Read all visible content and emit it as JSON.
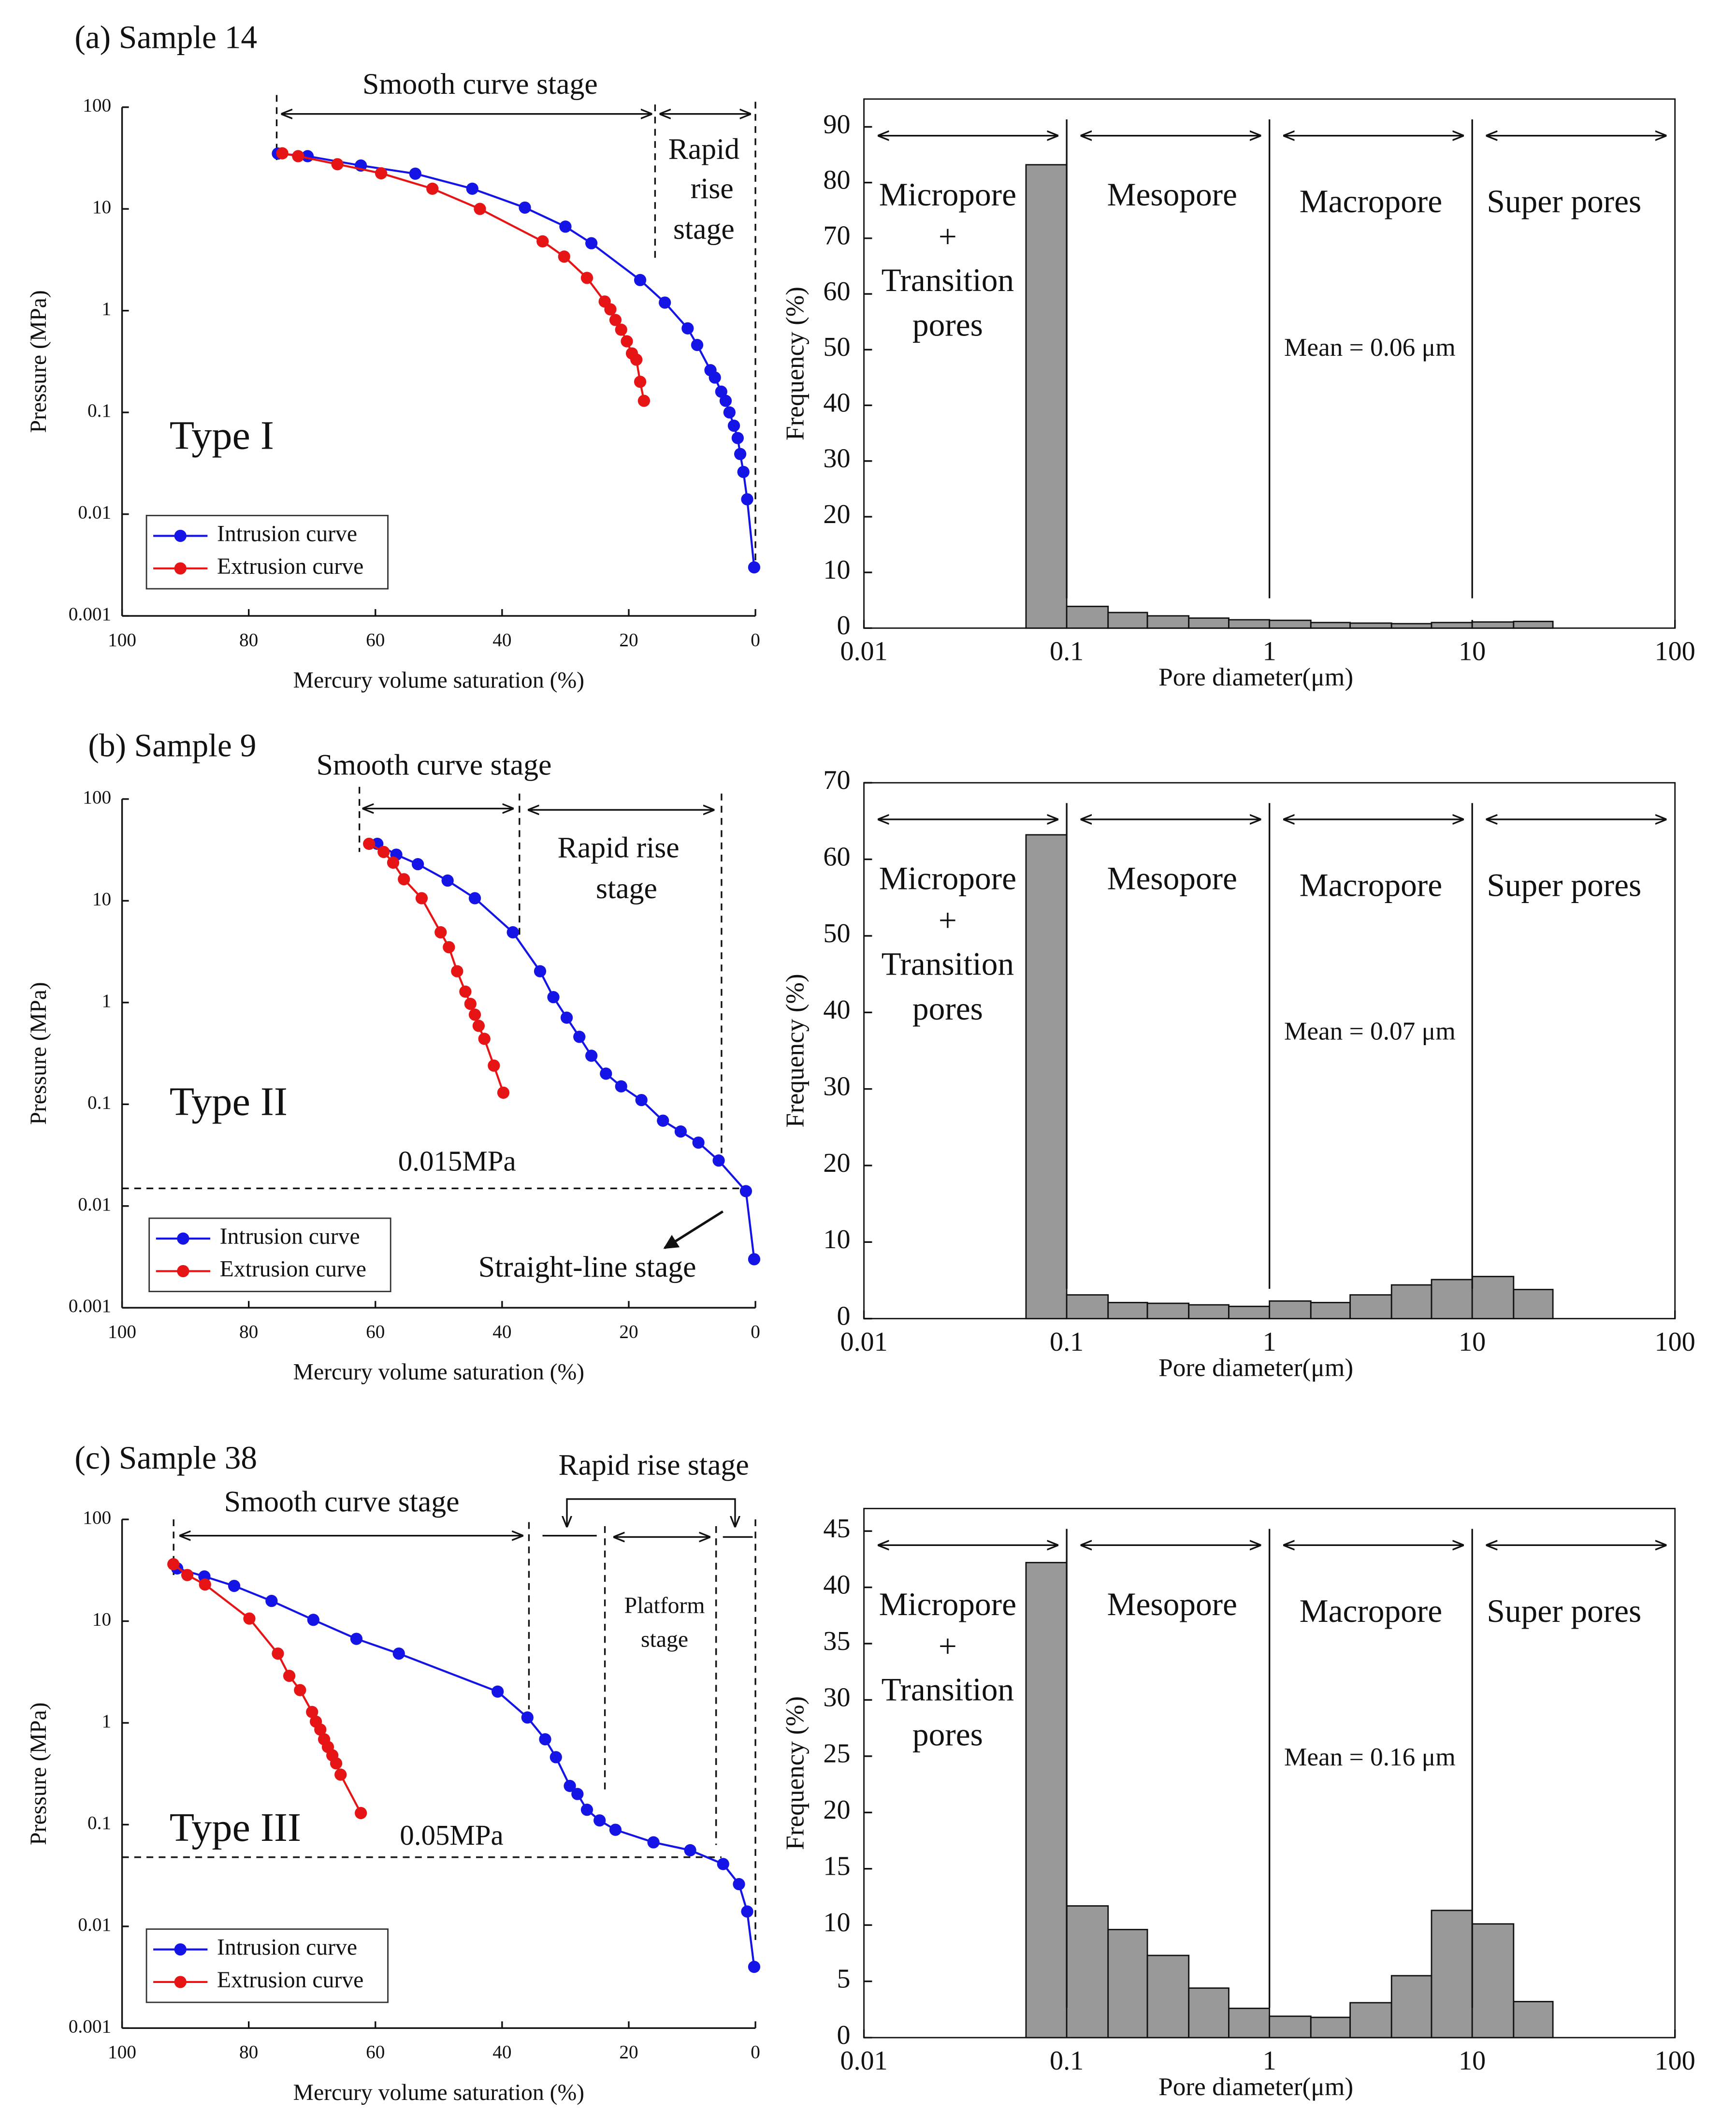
{
  "chart_data": [
    {
      "type": "line",
      "title": "(a)  Sample 14",
      "xlabel": "Mercury volume saturation (%)",
      "ylabel": "Pressure (MPa)",
      "xlim": [
        100,
        0
      ],
      "xticks": [
        100,
        80,
        60,
        40,
        20,
        0
      ],
      "ylim": [
        0.001,
        100
      ],
      "yticks": [
        100,
        10,
        1,
        0.1,
        0.01,
        0.001
      ],
      "log_y": true,
      "legend": "lower left",
      "type_label": "Type I",
      "annotations": [
        "Smooth curve stage",
        "Rapid",
        "rise",
        "stage"
      ],
      "series": [
        {
          "name": "Intrusion curve",
          "color": "#1414e6",
          "x": [
            75.4,
            70.7,
            62.3,
            53.7,
            44.7,
            36.4,
            30,
            25.9,
            18.2,
            14.3,
            10.7,
            9.2,
            7.1,
            6.4,
            5.4,
            4.7,
            4.1,
            3.4,
            2.8,
            2.4,
            1.9,
            1.3,
            0.2
          ],
          "values": [
            35,
            33,
            26.7,
            22.2,
            15.8,
            10.3,
            6.7,
            4.6,
            2.0,
            1.2,
            0.67,
            0.46,
            0.26,
            0.22,
            0.16,
            0.13,
            0.1,
            0.074,
            0.056,
            0.039,
            0.026,
            0.014,
            0.003
          ]
        },
        {
          "name": "Extrusion curve",
          "color": "#e61414",
          "x": [
            74.7,
            72.2,
            66,
            59.1,
            51,
            43.5,
            33.6,
            30.2,
            26.6,
            23.8,
            22.9,
            22.1,
            21.2,
            20.3,
            19.5,
            18.8,
            18.2,
            17.6
          ],
          "values": [
            35.2,
            33,
            27.5,
            22.4,
            15.8,
            10,
            4.8,
            3.4,
            2.1,
            1.23,
            1.03,
            0.81,
            0.65,
            0.5,
            0.38,
            0.33,
            0.2,
            0.13
          ]
        }
      ]
    },
    {
      "type": "histogram",
      "xlabel": "Pore diameter(μm)",
      "ylabel": "Frequency (%)",
      "color": "#999999",
      "xlim": [
        0.01,
        100
      ],
      "xticks": [
        0.01,
        0.1,
        1,
        10,
        100
      ],
      "log_x": true,
      "ylim": [
        0,
        95
      ],
      "yticks": [
        0,
        10,
        20,
        30,
        40,
        50,
        60,
        70,
        80,
        90
      ],
      "bins": [
        0.063,
        0.1,
        0.16,
        0.25,
        0.4,
        0.63,
        1,
        1.6,
        2.5,
        4,
        6.3,
        10,
        16,
        25
      ],
      "values": [
        83.2,
        3.9,
        2.8,
        2.2,
        1.8,
        1.5,
        1.4,
        1.0,
        0.9,
        0.8,
        1.0,
        1.1,
        1.2
      ],
      "annotations": [
        "Micropore",
        "+",
        "Transition",
        "pores",
        "Mesopore",
        "Macropore",
        "Super pores",
        "Mean = 0.06 μm"
      ]
    },
    {
      "type": "line",
      "title": "(b)  Sample 9",
      "xlabel": "Mercury volume saturation (%)",
      "ylabel": "Pressure (MPa)",
      "xlim": [
        100,
        0
      ],
      "xticks": [
        100,
        80,
        60,
        40,
        20,
        0
      ],
      "ylim": [
        0.001,
        100
      ],
      "yticks": [
        100,
        10,
        1,
        0.1,
        0.01,
        0.001
      ],
      "log_y": true,
      "legend": "lower left",
      "type_label": "Type II",
      "annotations": [
        "Smooth curve stage",
        "Rapid rise",
        "stage",
        "0.015MPa",
        "Straight-line stage"
      ],
      "series": [
        {
          "name": "Intrusion curve",
          "color": "#1414e6",
          "x": [
            59.7,
            56.7,
            53.3,
            48.6,
            44.3,
            38.3,
            34.0,
            31.9,
            29.8,
            27.8,
            25.9,
            23.6,
            21.2,
            18.0,
            14.6,
            11.8,
            9.0,
            5.8,
            1.5,
            0.2
          ],
          "values": [
            36.3,
            28.4,
            22.9,
            15.8,
            10.6,
            4.9,
            2.03,
            1.13,
            0.71,
            0.46,
            0.3,
            0.2,
            0.15,
            0.11,
            0.069,
            0.054,
            0.042,
            0.028,
            0.014,
            0.003
          ]
        },
        {
          "name": "Extrusion curve",
          "color": "#e61414",
          "x": [
            61,
            58.7,
            57.2,
            55.5,
            52.7,
            49.7,
            48.4,
            47.1,
            45.8,
            45,
            44.3,
            43.7,
            42.8,
            41.3,
            39.8
          ],
          "values": [
            36.3,
            30.2,
            23.7,
            16.3,
            10.6,
            4.9,
            3.5,
            2.03,
            1.28,
            0.97,
            0.76,
            0.59,
            0.44,
            0.24,
            0.13
          ]
        }
      ]
    },
    {
      "type": "histogram",
      "xlabel": "Pore diameter(μm)",
      "ylabel": "Frequency (%)",
      "color": "#999999",
      "xlim": [
        0.01,
        100
      ],
      "xticks": [
        0.01,
        0.1,
        1,
        10,
        100
      ],
      "log_x": true,
      "ylim": [
        0,
        70
      ],
      "yticks": [
        0,
        10,
        20,
        30,
        40,
        50,
        60,
        70
      ],
      "bins": [
        0.063,
        0.1,
        0.16,
        0.25,
        0.4,
        0.63,
        1,
        1.6,
        2.5,
        4,
        6.3,
        10,
        16,
        25
      ],
      "values": [
        63.2,
        3.1,
        2.1,
        2.0,
        1.8,
        1.6,
        2.3,
        2.1,
        3.1,
        4.4,
        5.1,
        5.5,
        3.8
      ],
      "annotations": [
        "Micropore",
        "+",
        "Transition",
        "pores",
        "Mesopore",
        "Macropore",
        "Super pores",
        "Mean = 0.07 μm"
      ]
    },
    {
      "type": "line",
      "title": "(c)  Sample 38",
      "xlabel": "Mercury volume saturation (%)",
      "ylabel": "Pressure (MPa)",
      "xlim": [
        100,
        0
      ],
      "xticks": [
        100,
        80,
        60,
        40,
        20,
        0
      ],
      "ylim": [
        0.001,
        100
      ],
      "yticks": [
        100,
        10,
        1,
        0.1,
        0.01,
        0.001
      ],
      "log_y": true,
      "legend": "lower left",
      "type_label": "Type III",
      "annotations": [
        "Rapid rise stage",
        "Smooth curve stage",
        "Platform",
        "stage",
        "0.05MPa"
      ],
      "series": [
        {
          "name": "Intrusion curve",
          "color": "#1414e6",
          "x": [
            91.3,
            87,
            82.3,
            76.4,
            69.8,
            63,
            56.3,
            40.7,
            36,
            33.2,
            31.5,
            29.3,
            28.1,
            26.6,
            24.6,
            22.1,
            16.1,
            10.3,
            5.1,
            2.6,
            1.3,
            0.2
          ],
          "values": [
            33,
            27.5,
            22.2,
            15.8,
            10.3,
            6.7,
            4.8,
            2.03,
            1.13,
            0.69,
            0.46,
            0.24,
            0.2,
            0.14,
            0.11,
            0.089,
            0.067,
            0.056,
            0.041,
            0.026,
            0.014,
            0.004
          ]
        },
        {
          "name": "Extrusion curve",
          "color": "#e61414",
          "x": [
            91.9,
            89.7,
            86.9,
            79.9,
            75.4,
            73.6,
            71.9,
            70,
            69.4,
            68.7,
            68.1,
            67.5,
            66.8,
            66.2,
            65.5,
            62.3
          ],
          "values": [
            36.3,
            28.4,
            22.9,
            10.6,
            4.8,
            2.9,
            2.1,
            1.28,
            1.03,
            0.86,
            0.69,
            0.58,
            0.48,
            0.4,
            0.31,
            0.13
          ]
        }
      ]
    },
    {
      "type": "histogram",
      "xlabel": "Pore diameter(μm)",
      "ylabel": "Frequency (%)",
      "color": "#999999",
      "xlim": [
        0.01,
        100
      ],
      "xticks": [
        0.01,
        0.1,
        1,
        10,
        100
      ],
      "log_x": true,
      "ylim": [
        0,
        47
      ],
      "yticks": [
        0,
        5,
        10,
        15,
        20,
        25,
        30,
        35,
        40,
        45
      ],
      "bins": [
        0.063,
        0.1,
        0.16,
        0.25,
        0.4,
        0.63,
        1,
        1.6,
        2.5,
        4,
        6.3,
        10,
        16,
        25
      ],
      "values": [
        42.2,
        11.7,
        9.6,
        7.3,
        4.4,
        2.6,
        1.9,
        1.8,
        3.1,
        5.5,
        11.3,
        10.1,
        3.2
      ],
      "annotations": [
        "Micropore",
        "+",
        "Transition",
        "pores",
        "Mesopore",
        "Macropore",
        "Super pores",
        "Mean = 0.16 μm"
      ]
    }
  ]
}
